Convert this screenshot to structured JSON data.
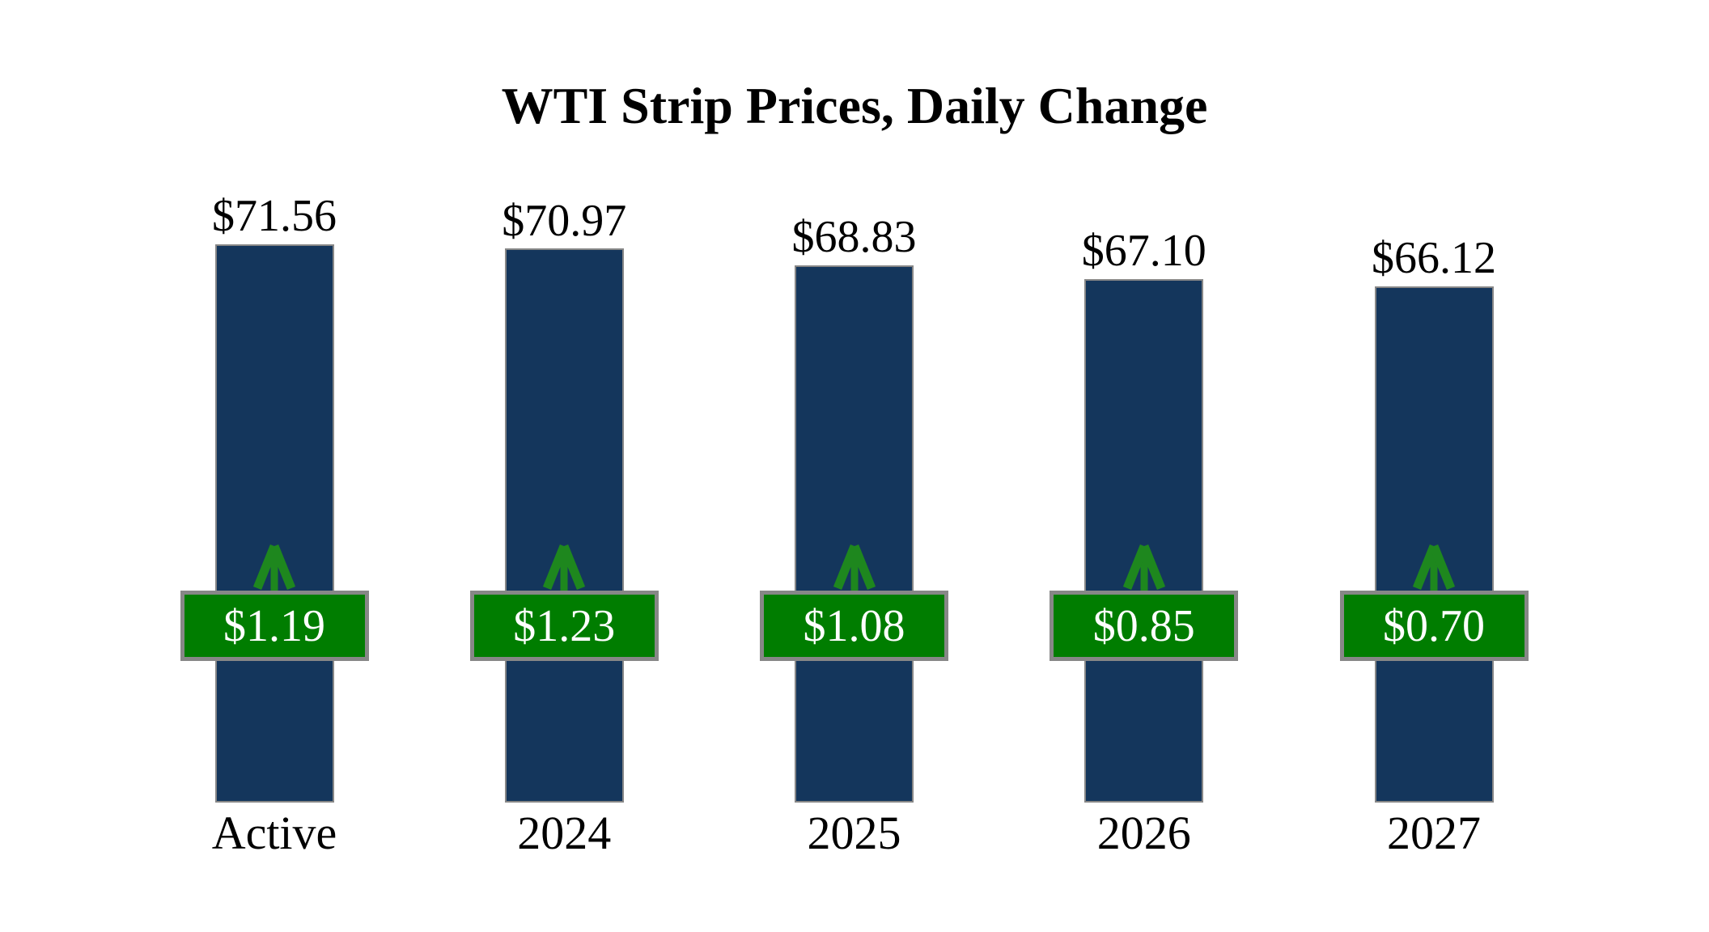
{
  "title": "WTI Strip Prices, Daily Change",
  "chart_data": {
    "type": "bar",
    "title": "WTI Strip Prices, Daily Change",
    "categories": [
      "Active",
      "2024",
      "2025",
      "2026",
      "2027"
    ],
    "series": [
      {
        "name": "strip_price",
        "values": [
          71.56,
          70.97,
          68.83,
          67.1,
          66.12
        ],
        "labels": [
          "$71.56",
          "$70.97",
          "$68.83",
          "$67.10",
          "$66.12"
        ]
      },
      {
        "name": "daily_change",
        "values": [
          1.19,
          1.23,
          1.08,
          0.85,
          0.7
        ],
        "labels": [
          "$1.19",
          "$1.23",
          "$1.08",
          "$0.85",
          "$0.70"
        ],
        "direction": [
          "up",
          "up",
          "up",
          "up",
          "up"
        ]
      }
    ],
    "ylim": [
      0,
      71.56
    ],
    "grid": false,
    "legend": false,
    "axes_visible": false,
    "icons": {
      "change_direction": "up-arrow-icon"
    },
    "colors": {
      "bar_fill": "#14365C",
      "bar_border": "#878787",
      "badge_fill": "#007D00",
      "badge_border": "#878787",
      "badge_text": "#FFFFFF",
      "arrow": "#1E871E",
      "text": "#000000",
      "background": "#FFFFFF"
    }
  }
}
